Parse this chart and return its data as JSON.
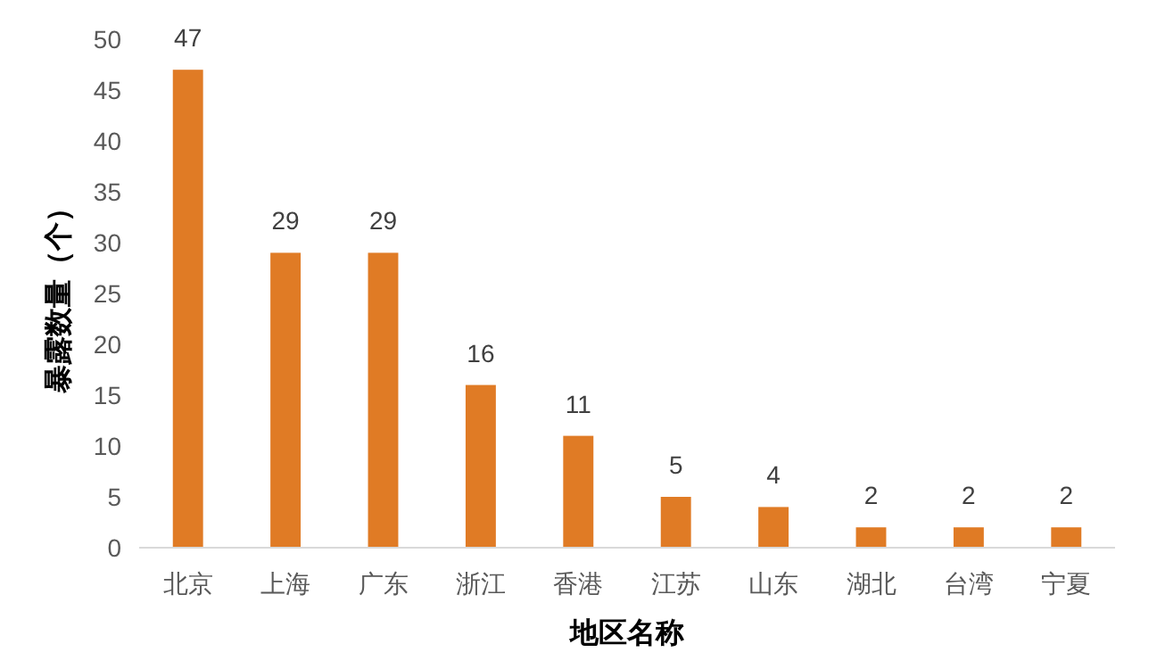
{
  "chart_data": {
    "type": "bar",
    "xlabel": "地区名称",
    "ylabel": "暴露数量（个）",
    "categories": [
      "北京",
      "上海",
      "广东",
      "浙江",
      "香港",
      "江苏",
      "山东",
      "湖北",
      "台湾",
      "宁夏"
    ],
    "values": [
      47,
      29,
      29,
      16,
      11,
      5,
      4,
      2,
      2,
      2
    ],
    "color": "#e07b25",
    "ylim": [
      0,
      50
    ],
    "yticks": [
      0,
      5,
      10,
      15,
      20,
      25,
      30,
      35,
      40,
      45,
      50
    ],
    "data_labels": true,
    "grid": false
  }
}
